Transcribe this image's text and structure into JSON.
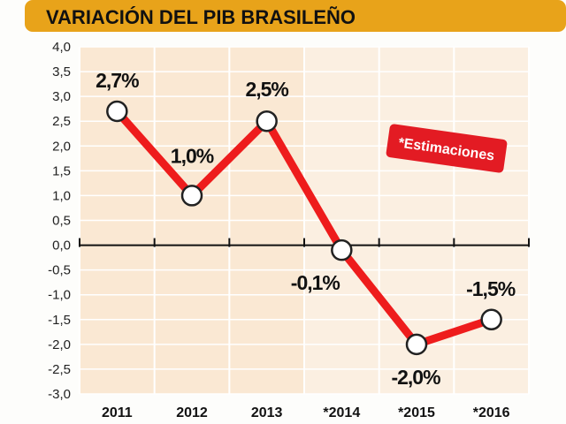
{
  "chart_data": {
    "type": "line",
    "title": "VARIACIÓN DEL PIB BRASILEÑO",
    "categories": [
      "2011",
      "2012",
      "2013",
      "*2014",
      "*2015",
      "*2016"
    ],
    "values": [
      2.7,
      1.0,
      2.5,
      -0.1,
      -2.0,
      -1.5
    ],
    "data_labels": [
      "2,7%",
      "1,0%",
      "2,5%",
      "-0,1%",
      "-2,0%",
      "-1,5%"
    ],
    "y_ticks": [
      "4,0",
      "3,5",
      "3,0",
      "2,5",
      "2,0",
      "1,5",
      "1,0",
      "0,5",
      "0,0",
      "-0,5",
      "-1,0",
      "-1,5",
      "-2,0",
      "-2,5",
      "-3,0"
    ],
    "ylim": [
      -3.0,
      4.0
    ],
    "estimated_from_index": 3,
    "annotation": "*Estimaciones",
    "grid": true,
    "colors": {
      "line": "#ee1c1c",
      "title_bar": "#e8a31a",
      "actual_band": "#fae8d3",
      "estimate_band": "#fbefe1",
      "badge": "#e31b23"
    }
  }
}
